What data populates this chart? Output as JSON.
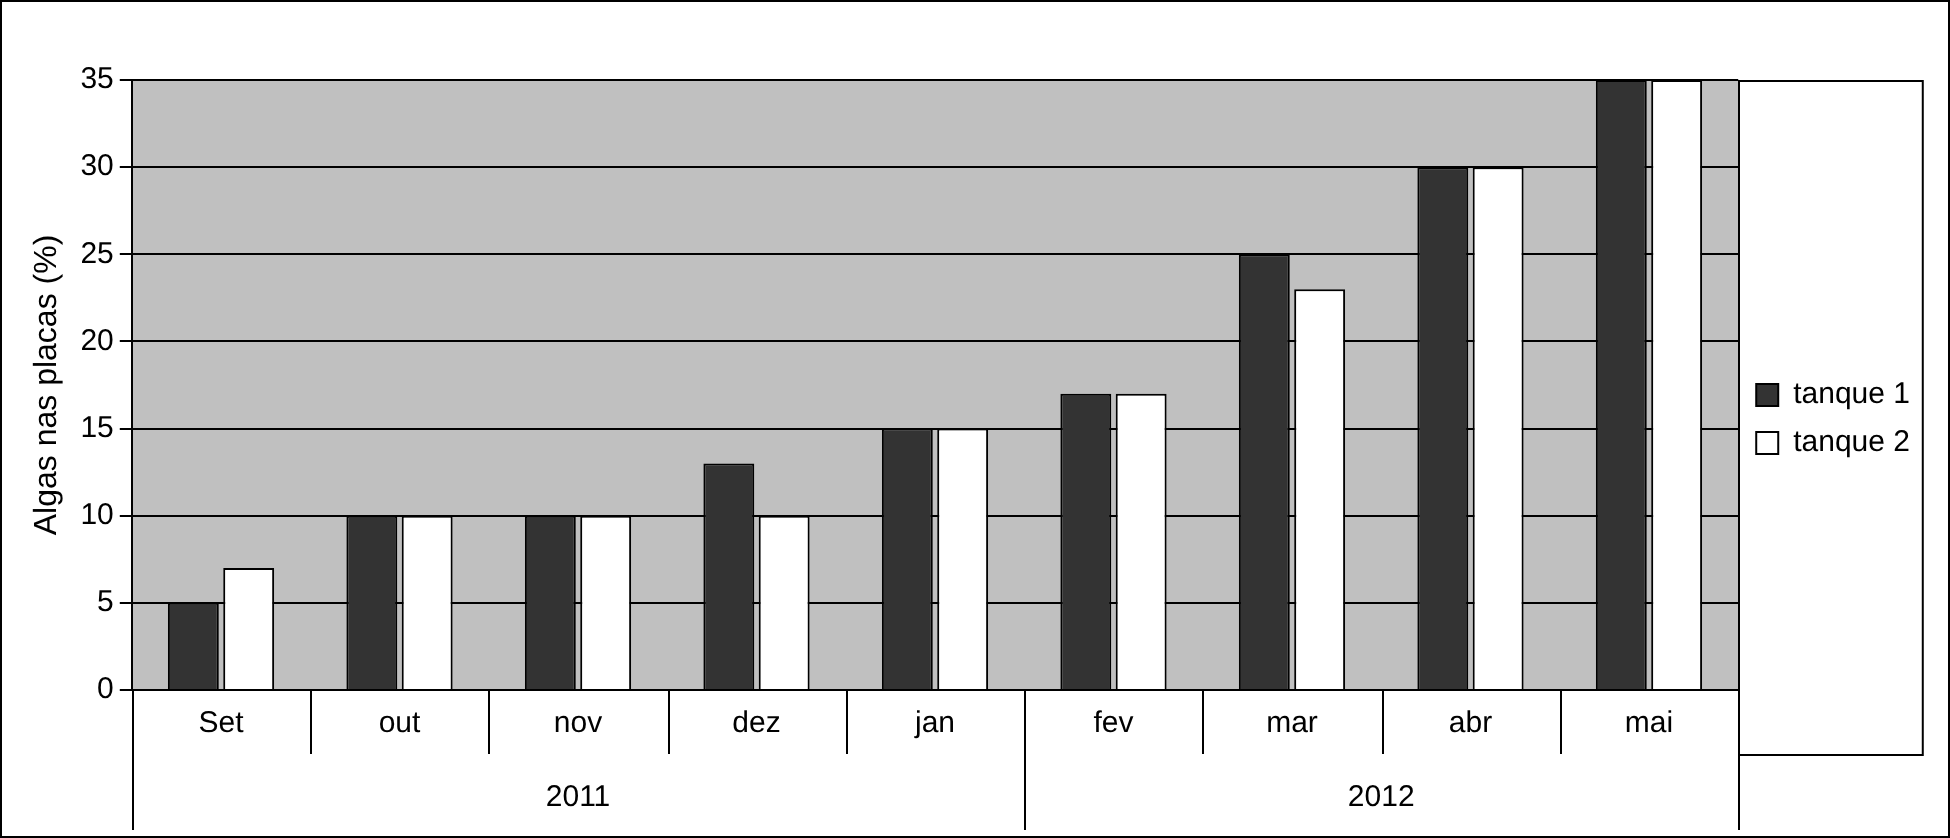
{
  "chart_data": {
    "type": "bar",
    "ylabel": "Algas nas placas (%)",
    "categories": [
      "Set",
      "out",
      "nov",
      "dez",
      "jan",
      "fev",
      "mar",
      "abr",
      "mai"
    ],
    "series": [
      {
        "name": "tanque 1",
        "color": "#333333",
        "values": [
          5,
          10,
          10,
          13,
          15,
          17,
          25,
          30,
          35
        ]
      },
      {
        "name": "tanque 2",
        "color": "#ffffff",
        "values": [
          7,
          10,
          10,
          10,
          15,
          17,
          23,
          30,
          35
        ]
      }
    ],
    "ylim": [
      0,
      35
    ],
    "yticks": [
      0,
      5,
      10,
      15,
      20,
      25,
      30,
      35
    ],
    "grid": "y",
    "legend": "right",
    "annotations": [
      "2011",
      "2012"
    ]
  }
}
